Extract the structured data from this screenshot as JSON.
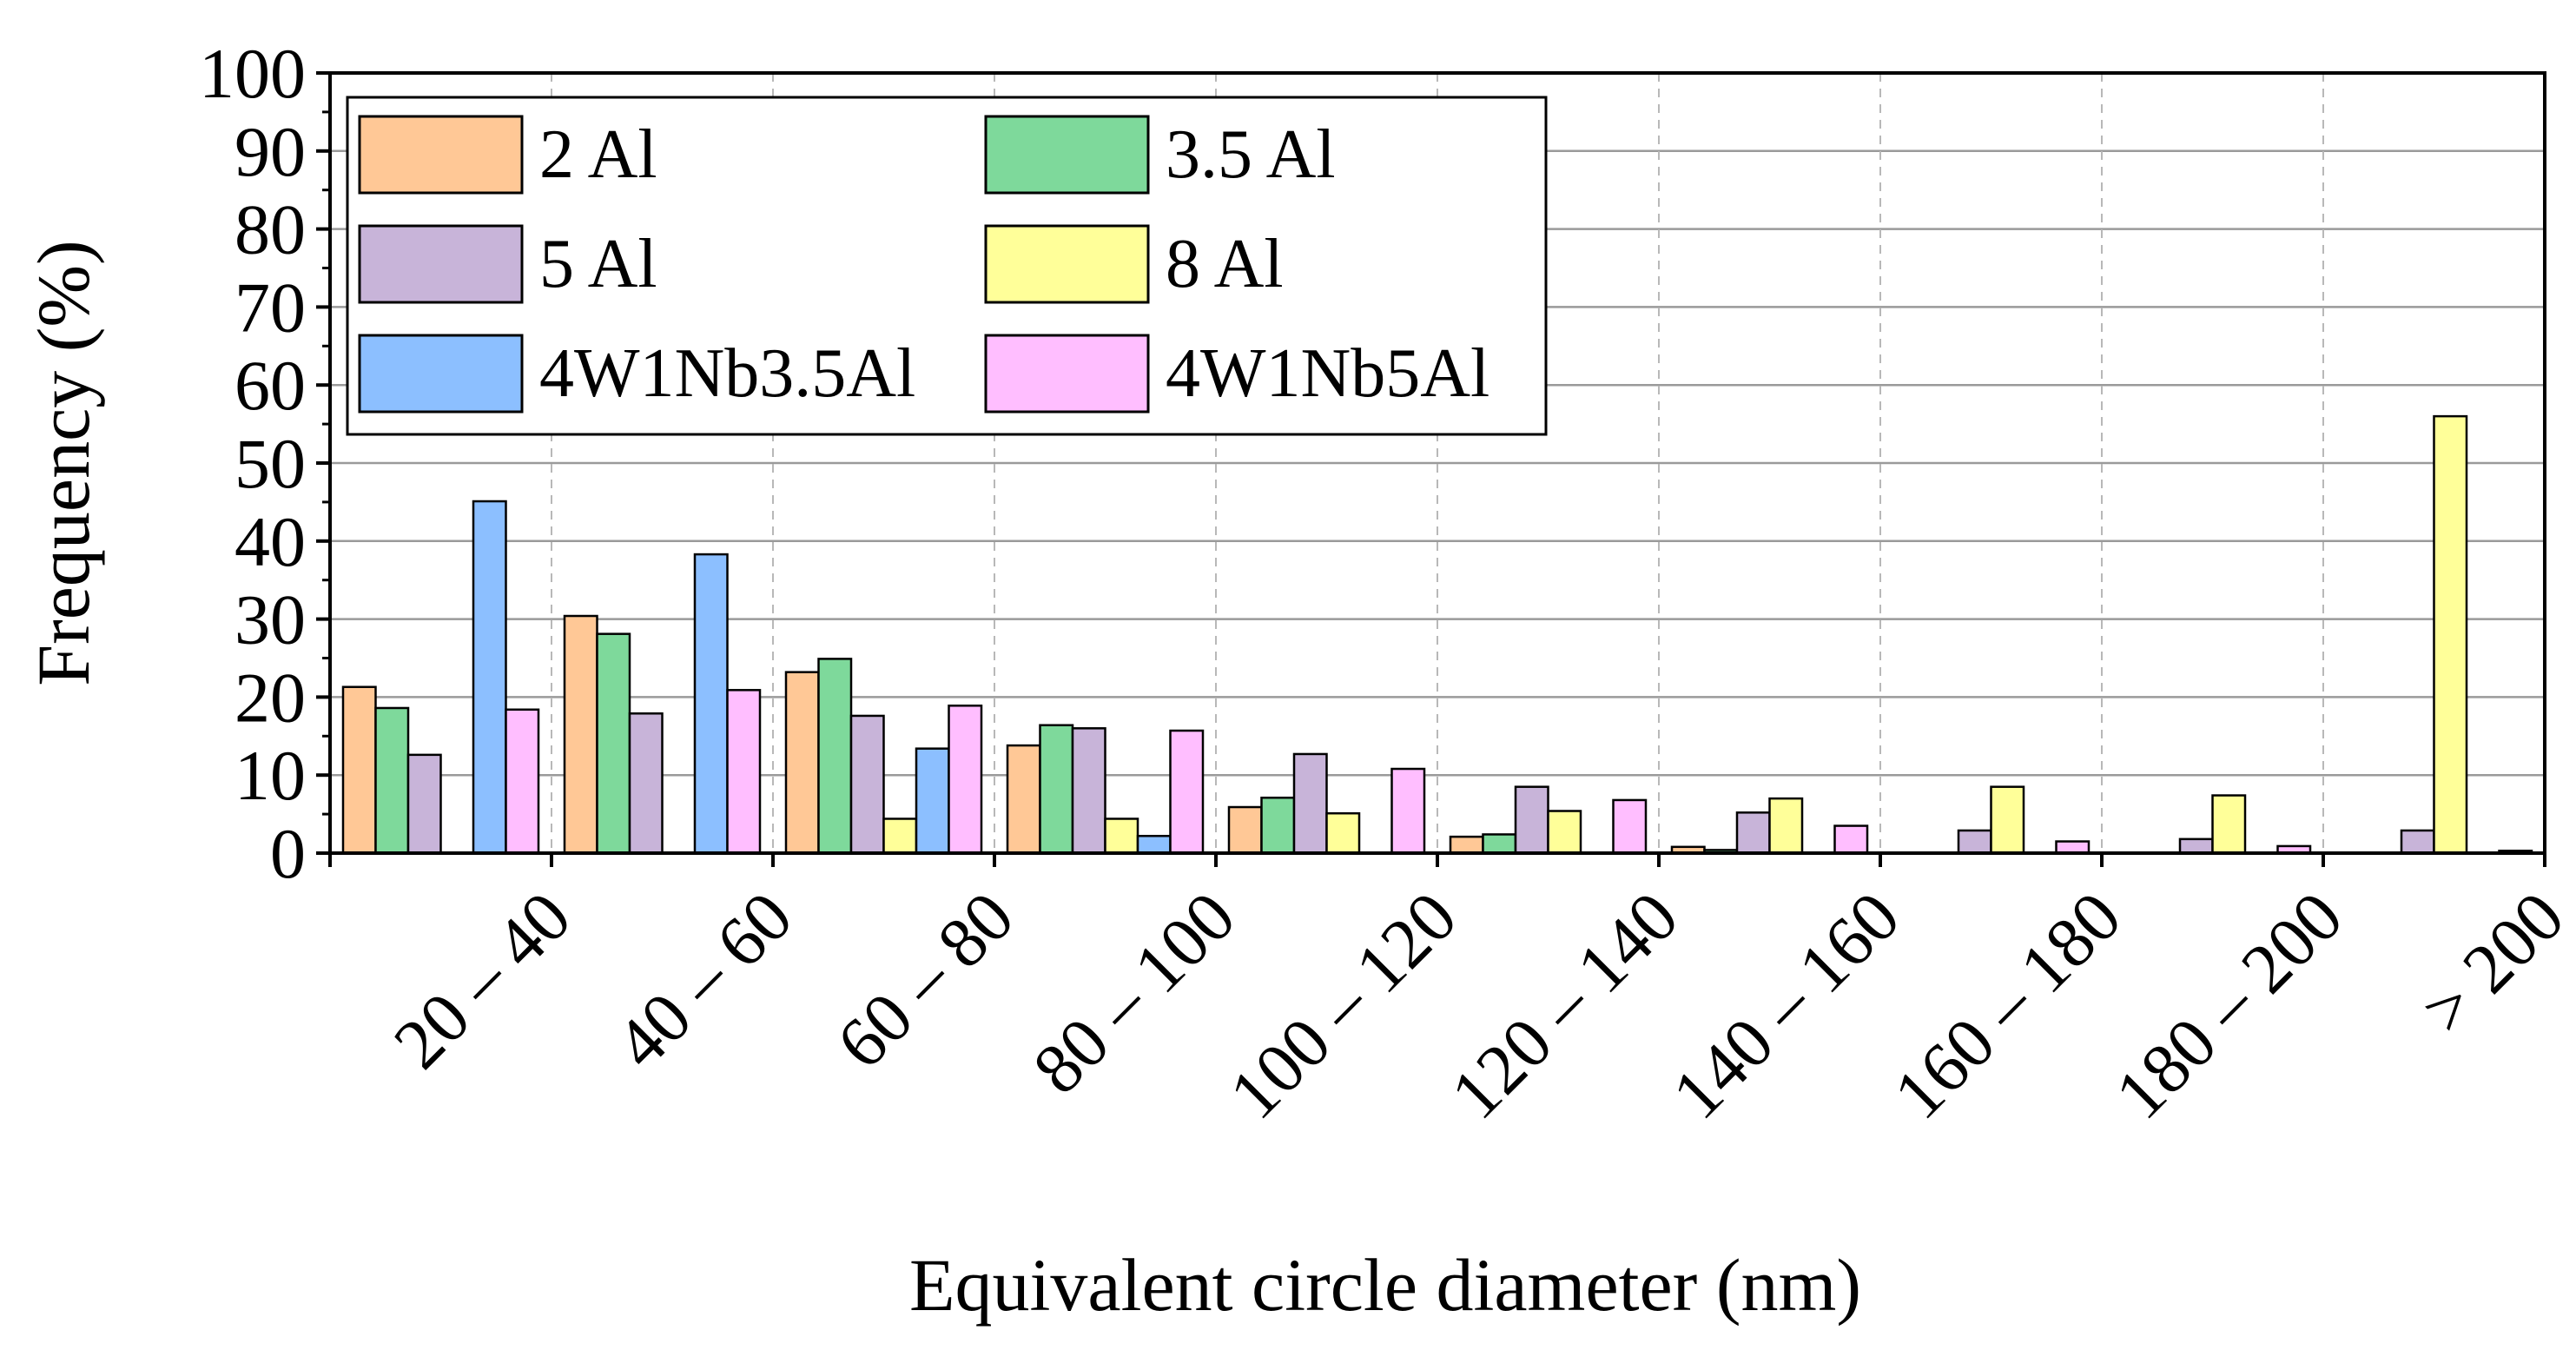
{
  "chart_data": {
    "type": "bar",
    "title": "",
    "xlabel": "Equivalent circle diameter (nm)",
    "ylabel": "Frequency (%)",
    "ylim": [
      0,
      100
    ],
    "yticks": [
      0,
      10,
      20,
      30,
      40,
      50,
      60,
      70,
      80,
      90,
      100
    ],
    "categories": [
      "20 – 40",
      "40 – 60",
      "60 – 80",
      "80 – 100",
      "100 – 120",
      "120 – 140",
      "140 – 160",
      "160 – 180",
      "180 – 200",
      "> 200"
    ],
    "grid": true,
    "legend_position": "top-left",
    "series": [
      {
        "name": "2 Al",
        "color": "#FFC896",
        "values": [
          21.3,
          30.4,
          23.2,
          13.8,
          5.9,
          2.1,
          0.8,
          0.0,
          0.0,
          0.0
        ]
      },
      {
        "name": "3.5 Al",
        "color": "#7ED99B",
        "values": [
          18.6,
          28.1,
          24.9,
          16.4,
          7.1,
          2.4,
          0.4,
          0.0,
          0.0,
          0.0
        ]
      },
      {
        "name": "5 Al",
        "color": "#C8B4D9",
        "values": [
          12.6,
          17.9,
          17.6,
          16.0,
          12.7,
          8.5,
          5.2,
          2.9,
          1.8,
          2.9
        ]
      },
      {
        "name": "8 Al",
        "color": "#FFFF99",
        "values": [
          0.0,
          0.0,
          4.4,
          4.4,
          5.1,
          5.4,
          7.0,
          8.5,
          7.4,
          56.0
        ]
      },
      {
        "name": "4W1Nb3.5Al",
        "color": "#8CBFFF",
        "values": [
          45.1,
          38.3,
          13.4,
          2.2,
          0.0,
          0.0,
          0.0,
          0.0,
          0.0,
          0.0
        ]
      },
      {
        "name": "4W1Nb5Al",
        "color": "#FFBEFF",
        "values": [
          18.4,
          20.9,
          18.9,
          15.7,
          10.8,
          6.8,
          3.5,
          1.5,
          0.9,
          0.3
        ]
      }
    ]
  }
}
